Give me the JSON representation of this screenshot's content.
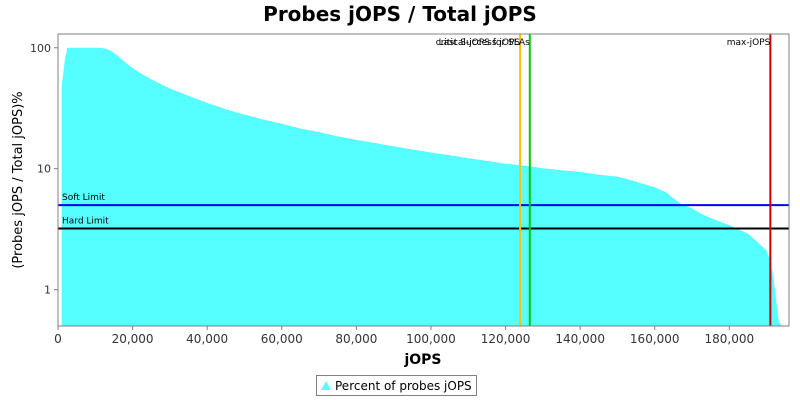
{
  "chart_data": {
    "type": "area",
    "title": "Probes jOPS / Total jOPS",
    "xlabel": "jOPS",
    "ylabel": "(Probes jOPS / Total jOPS)%",
    "y_scale": "log",
    "xlim": [
      0,
      196000
    ],
    "ylim": [
      0.5,
      130
    ],
    "x_ticks": [
      0,
      20000,
      40000,
      60000,
      80000,
      100000,
      120000,
      140000,
      160000,
      180000
    ],
    "x_tick_labels": [
      "0",
      "20,000",
      "40,000",
      "60,000",
      "80,000",
      "100,000",
      "120,000",
      "140,000",
      "160,000",
      "180,000"
    ],
    "y_ticks": [
      1,
      10,
      100
    ],
    "y_tick_labels": [
      "1",
      "10",
      "100"
    ],
    "grid": false,
    "legend_position": "bottom",
    "series": [
      {
        "name": "Percent of probes jOPS",
        "color": "#55ffff",
        "x": [
          1000,
          1800,
          2500,
          3000,
          5000,
          8000,
          11000,
          13000,
          14500,
          16000,
          18000,
          20000,
          22000,
          25000,
          30000,
          35000,
          40000,
          45000,
          50000,
          55000,
          60000,
          65000,
          70000,
          75000,
          80000,
          85000,
          90000,
          95000,
          100000,
          105000,
          110000,
          115000,
          120000,
          125000,
          130000,
          135000,
          140000,
          142000,
          145000,
          150000,
          152000,
          155000,
          160000,
          163000,
          165000,
          167000,
          170000,
          172000,
          175000,
          180000,
          183000,
          185000,
          188000,
          190000,
          190800,
          191600,
          192400,
          193200,
          194000
        ],
        "y": [
          47,
          78,
          99,
          100,
          100,
          100,
          100,
          98,
          93,
          86,
          76,
          68,
          62,
          55,
          46,
          40,
          35,
          31,
          28,
          25.5,
          23.5,
          21.5,
          20,
          18.5,
          17.3,
          16.3,
          15.3,
          14.4,
          13.6,
          12.9,
          12.2,
          11.6,
          11,
          10.6,
          10.1,
          9.7,
          9.4,
          9.2,
          8.9,
          8.6,
          8.3,
          7.8,
          7,
          6.4,
          5.7,
          5.1,
          4.7,
          4.3,
          3.9,
          3.4,
          3.1,
          2.9,
          2.4,
          2.1,
          1.8,
          1.4,
          0.9,
          0.55,
          0.5
        ]
      }
    ],
    "reference_lines": [
      {
        "axis": "y",
        "value": 5,
        "label": "Soft Limit",
        "color": "#0000ff"
      },
      {
        "axis": "y",
        "value": 3.2,
        "label": "Hard Limit",
        "color": "#000000"
      },
      {
        "axis": "x",
        "value": 123900,
        "label": "Last Success jOPS",
        "color": "#ffc000"
      },
      {
        "axis": "x",
        "value": 126500,
        "label": "critical-jOPS for SLAs",
        "color": "#00cc00"
      },
      {
        "axis": "x",
        "value": 191000,
        "label": "max-jOPS",
        "color": "#cc0000"
      }
    ]
  }
}
